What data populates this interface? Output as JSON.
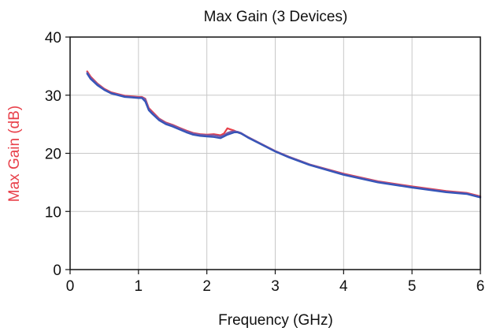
{
  "chart_data": {
    "type": "line",
    "title": "Max Gain (3 Devices)",
    "xlabel": "Frequency (GHz)",
    "ylabel": "Max Gain (dB)",
    "xlim": [
      0,
      6
    ],
    "ylim": [
      0,
      40
    ],
    "xticks": [
      0,
      1,
      2,
      3,
      4,
      5,
      6
    ],
    "yticks": [
      0,
      10,
      20,
      30,
      40
    ],
    "xtick_labels": [
      "0",
      "1",
      "2",
      "3",
      "4",
      "5",
      "6"
    ],
    "ytick_labels": [
      "0",
      "10",
      "20",
      "30",
      "40"
    ],
    "grid": true,
    "colors": {
      "ylabel": "#e8404a",
      "grid": "#c8c8c8",
      "axis": "#111111"
    },
    "series": [
      {
        "color": "#e8404a",
        "x": [
          0.25,
          0.3,
          0.4,
          0.5,
          0.6,
          0.7,
          0.8,
          0.9,
          1.0,
          1.05,
          1.1,
          1.15,
          1.2,
          1.3,
          1.4,
          1.5,
          1.6,
          1.7,
          1.8,
          1.9,
          2.0,
          2.1,
          2.2,
          2.25,
          2.3,
          2.35,
          2.4,
          2.45,
          2.5,
          2.6,
          2.8,
          3.0,
          3.2,
          3.5,
          4.0,
          4.5,
          5.0,
          5.5,
          5.8,
          6.0
        ],
        "y": [
          34.1,
          33.2,
          32.0,
          31.1,
          30.5,
          30.2,
          29.9,
          29.8,
          29.7,
          29.7,
          29.4,
          27.8,
          27.2,
          26.0,
          25.3,
          24.9,
          24.4,
          23.9,
          23.5,
          23.3,
          23.2,
          23.3,
          23.1,
          23.4,
          24.3,
          24.1,
          23.9,
          23.6,
          23.4,
          22.8,
          21.6,
          20.4,
          19.4,
          18.1,
          16.5,
          15.2,
          14.3,
          13.5,
          13.2,
          12.6
        ]
      },
      {
        "color": "#7a5aa8",
        "x": [
          0.25,
          0.3,
          0.4,
          0.5,
          0.6,
          0.7,
          0.8,
          0.9,
          1.0,
          1.05,
          1.1,
          1.15,
          1.2,
          1.3,
          1.4,
          1.5,
          1.6,
          1.7,
          1.8,
          1.9,
          2.0,
          2.1,
          2.2,
          2.25,
          2.3,
          2.35,
          2.4,
          2.45,
          2.5,
          2.6,
          2.8,
          3.0,
          3.2,
          3.5,
          4.0,
          4.5,
          5.0,
          5.5,
          5.8,
          6.0
        ],
        "y": [
          33.9,
          33.0,
          31.9,
          31.0,
          30.4,
          30.1,
          29.8,
          29.7,
          29.6,
          29.6,
          29.3,
          27.6,
          27.0,
          25.9,
          25.2,
          24.8,
          24.3,
          23.8,
          23.4,
          23.2,
          23.1,
          23.1,
          22.9,
          23.1,
          23.5,
          23.7,
          23.8,
          23.7,
          23.5,
          22.8,
          21.6,
          20.4,
          19.4,
          18.1,
          16.4,
          15.1,
          14.2,
          13.4,
          13.1,
          12.5
        ]
      },
      {
        "color": "#3555b8",
        "x": [
          0.25,
          0.3,
          0.4,
          0.5,
          0.6,
          0.7,
          0.8,
          0.9,
          1.0,
          1.05,
          1.1,
          1.15,
          1.2,
          1.3,
          1.4,
          1.5,
          1.6,
          1.7,
          1.8,
          1.9,
          2.0,
          2.1,
          2.2,
          2.25,
          2.3,
          2.35,
          2.4,
          2.45,
          2.5,
          2.6,
          2.8,
          3.0,
          3.2,
          3.5,
          4.0,
          4.5,
          5.0,
          5.5,
          5.8,
          6.0
        ],
        "y": [
          33.7,
          32.8,
          31.7,
          30.9,
          30.3,
          30.0,
          29.7,
          29.6,
          29.5,
          29.5,
          28.9,
          27.4,
          26.8,
          25.7,
          25.0,
          24.6,
          24.1,
          23.6,
          23.2,
          23.0,
          22.9,
          22.8,
          22.6,
          22.9,
          23.2,
          23.4,
          23.6,
          23.6,
          23.4,
          22.7,
          21.5,
          20.3,
          19.3,
          18.0,
          16.3,
          15.0,
          14.1,
          13.3,
          13.0,
          12.4
        ]
      }
    ]
  }
}
